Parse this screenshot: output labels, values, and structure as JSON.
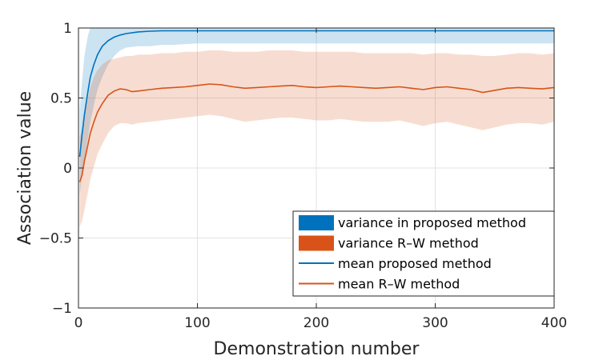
{
  "chart_data": {
    "type": "line",
    "title": "",
    "xlabel": "Demonstration number",
    "ylabel": "Association value",
    "xlim": [
      0,
      400
    ],
    "ylim": [
      -1,
      1
    ],
    "xticks": [
      0,
      100,
      200,
      300,
      400
    ],
    "xtick_labels": [
      "0",
      "100",
      "200",
      "300",
      "400"
    ],
    "yticks": [
      -1,
      -0.5,
      0,
      0.5,
      1
    ],
    "ytick_labels": [
      "−1",
      "−0.5",
      "0",
      "0.5",
      "1"
    ],
    "grid": true,
    "legend_position": "bottom-right",
    "legend": [
      {
        "label": "variance in proposed method",
        "kind": "patch",
        "color": "#0072BD"
      },
      {
        "label": "variance R–W method",
        "kind": "patch",
        "color": "#D95319"
      },
      {
        "label": "mean proposed method",
        "kind": "line",
        "color": "#0072BD"
      },
      {
        "label": "mean R–W method",
        "kind": "line",
        "color": "#D95319"
      }
    ],
    "series": [
      {
        "name": "mean proposed method",
        "color": "#0072BD",
        "x": [
          1,
          3,
          5,
          8,
          10,
          13,
          16,
          20,
          25,
          30,
          35,
          40,
          50,
          60,
          70,
          80,
          100,
          150,
          200,
          250,
          300,
          350,
          400
        ],
        "y": [
          0.08,
          0.24,
          0.38,
          0.55,
          0.65,
          0.74,
          0.81,
          0.87,
          0.91,
          0.935,
          0.95,
          0.96,
          0.972,
          0.977,
          0.98,
          0.98,
          0.98,
          0.98,
          0.98,
          0.98,
          0.98,
          0.98,
          0.98
        ],
        "band_upper": [
          0.42,
          0.62,
          0.8,
          0.95,
          1.0,
          1.0,
          1.0,
          1.0,
          1.0,
          1.0,
          1.0,
          1.0,
          1.0,
          1.0,
          1.0,
          1.0,
          1.0,
          1.0,
          1.0,
          1.0,
          1.0,
          1.0,
          1.0
        ],
        "band_lower": [
          -0.2,
          -0.05,
          0.05,
          0.22,
          0.33,
          0.45,
          0.56,
          0.65,
          0.74,
          0.8,
          0.84,
          0.86,
          0.87,
          0.87,
          0.88,
          0.88,
          0.89,
          0.89,
          0.89,
          0.89,
          0.89,
          0.89,
          0.89
        ]
      },
      {
        "name": "mean R–W method",
        "color": "#D95319",
        "x": [
          1,
          3,
          5,
          8,
          10,
          13,
          16,
          20,
          25,
          30,
          35,
          40,
          45,
          50,
          60,
          70,
          80,
          90,
          100,
          110,
          120,
          130,
          140,
          150,
          160,
          170,
          180,
          190,
          200,
          210,
          220,
          230,
          240,
          250,
          260,
          270,
          280,
          290,
          300,
          310,
          320,
          330,
          340,
          350,
          360,
          370,
          380,
          390,
          400
        ],
        "y": [
          -0.1,
          -0.05,
          0.05,
          0.17,
          0.25,
          0.33,
          0.4,
          0.46,
          0.52,
          0.55,
          0.565,
          0.56,
          0.545,
          0.55,
          0.56,
          0.57,
          0.575,
          0.58,
          0.59,
          0.6,
          0.595,
          0.58,
          0.57,
          0.575,
          0.58,
          0.585,
          0.59,
          0.58,
          0.575,
          0.58,
          0.585,
          0.58,
          0.575,
          0.57,
          0.575,
          0.58,
          0.57,
          0.56,
          0.575,
          0.58,
          0.57,
          0.56,
          0.54,
          0.555,
          0.57,
          0.575,
          0.57,
          0.565,
          0.575
        ],
        "band_upper": [
          0.22,
          0.28,
          0.38,
          0.5,
          0.58,
          0.65,
          0.7,
          0.74,
          0.77,
          0.78,
          0.79,
          0.8,
          0.8,
          0.81,
          0.81,
          0.82,
          0.82,
          0.83,
          0.83,
          0.84,
          0.84,
          0.83,
          0.83,
          0.83,
          0.84,
          0.84,
          0.84,
          0.83,
          0.83,
          0.83,
          0.83,
          0.83,
          0.82,
          0.82,
          0.82,
          0.82,
          0.82,
          0.81,
          0.82,
          0.82,
          0.81,
          0.81,
          0.8,
          0.8,
          0.81,
          0.82,
          0.82,
          0.81,
          0.82
        ],
        "band_lower": [
          -0.42,
          -0.38,
          -0.3,
          -0.17,
          -0.08,
          0.01,
          0.1,
          0.17,
          0.25,
          0.3,
          0.32,
          0.32,
          0.31,
          0.32,
          0.33,
          0.34,
          0.35,
          0.36,
          0.37,
          0.38,
          0.37,
          0.35,
          0.33,
          0.34,
          0.35,
          0.36,
          0.36,
          0.35,
          0.34,
          0.34,
          0.35,
          0.34,
          0.33,
          0.33,
          0.33,
          0.34,
          0.32,
          0.3,
          0.32,
          0.33,
          0.31,
          0.29,
          0.27,
          0.29,
          0.31,
          0.32,
          0.32,
          0.31,
          0.33
        ]
      }
    ]
  }
}
